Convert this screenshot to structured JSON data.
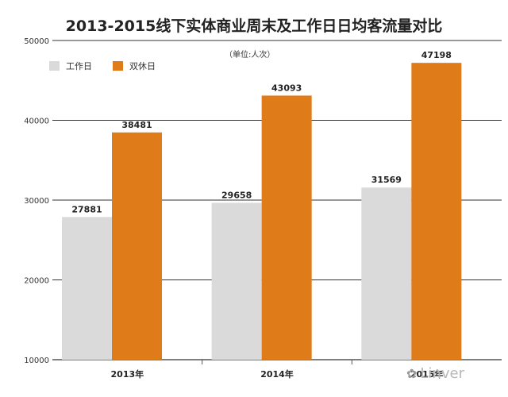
{
  "unit_label": "（单位:人次）",
  "legend": [
    {
      "label": "工作日",
      "color": "#dadada"
    },
    {
      "label": "双休日",
      "color": "#e07b1a"
    }
  ],
  "watermark": "Linver",
  "chart_data": {
    "type": "bar",
    "title": "2013-2015线下实体商业周末及工作日日均客流量对比",
    "categories": [
      "2013年",
      "2014年",
      "2015年"
    ],
    "series": [
      {
        "name": "工作日",
        "values": [
          27881,
          29658,
          31569
        ],
        "color": "#dadada"
      },
      {
        "name": "双休日",
        "values": [
          38481,
          43093,
          47198
        ],
        "color": "#e07b1a"
      }
    ],
    "ylim": [
      10000,
      50000
    ],
    "yticks": [
      "10000",
      "20000",
      "30000",
      "40000",
      "50000"
    ],
    "grid": true,
    "legend_position": "top-left",
    "xlabel": "",
    "ylabel": ""
  }
}
